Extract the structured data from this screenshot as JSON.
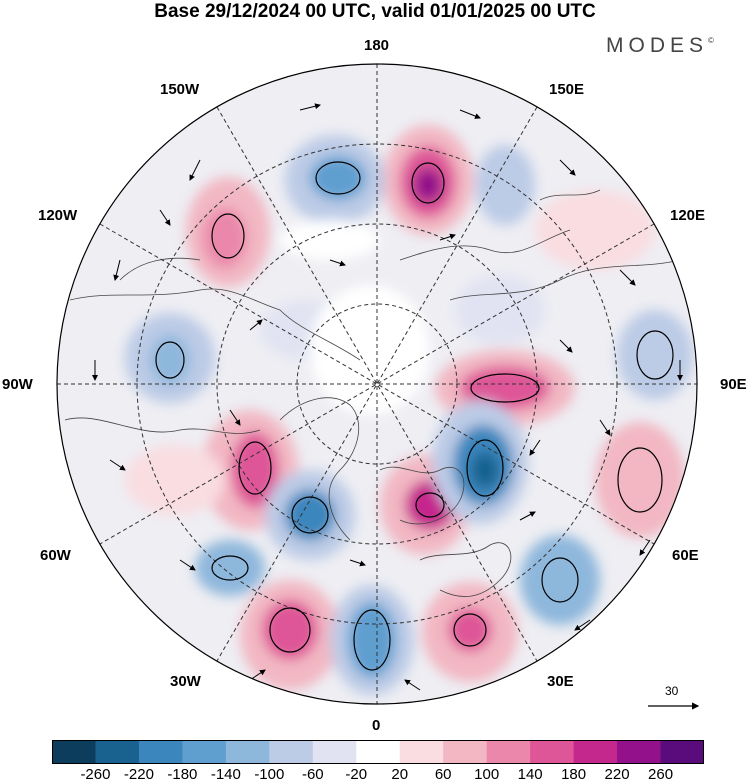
{
  "title": "Base 29/12/2024 00 UTC, valid 01/01/2025 00 UTC",
  "brand": "MODES",
  "brand_mark": "©",
  "lon_labels": {
    "top": "180",
    "w150": "150W",
    "e150": "150E",
    "w120": "120W",
    "e120": "120E",
    "w90": "90W",
    "e90": "90E",
    "w60": "60W",
    "e60": "60E",
    "w30": "30W",
    "e30": "30E",
    "bottom": "0"
  },
  "reference_vector": {
    "value": "30"
  },
  "colorbar": {
    "colors": [
      "#0d3d5c",
      "#19628f",
      "#3b86bd",
      "#5f9fd0",
      "#8eb7dc",
      "#bccbe6",
      "#e1e3f2",
      "#ffffff",
      "#f9dde1",
      "#f2b7c3",
      "#ea87aa",
      "#de5697",
      "#c5288d",
      "#93118a",
      "#5b0c7c"
    ],
    "ticks": [
      "-260",
      "-220",
      "-180",
      "-140",
      "-100",
      "-60",
      "-20",
      "20",
      "60",
      "100",
      "140",
      "180",
      "220",
      "260"
    ]
  },
  "anomaly_colors": {
    "negative": "#3b86bd",
    "positive": "#de5697"
  }
}
